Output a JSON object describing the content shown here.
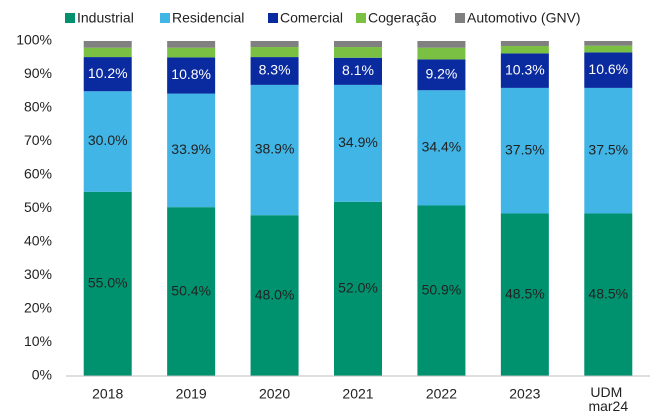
{
  "chart_data": {
    "type": "stacked_bar",
    "categories": [
      "2018",
      "2019",
      "2020",
      "2021",
      "2022",
      "2023",
      "UDM mar24"
    ],
    "series": [
      {
        "name": "Industrial",
        "color": "#00916e",
        "label_color": "#222222",
        "values": [
          55.0,
          50.4,
          48.0,
          52.0,
          50.9,
          48.5,
          48.5
        ],
        "value_labels": [
          "55.0%",
          "50.4%",
          "48.0%",
          "52.0%",
          "50.9%",
          "48.5%",
          "48.5%"
        ]
      },
      {
        "name": "Residencial",
        "color": "#41b6e6",
        "label_color": "#222222",
        "values": [
          30.0,
          33.9,
          38.9,
          34.9,
          34.4,
          37.5,
          37.5
        ],
        "value_labels": [
          "30.0%",
          "33.9%",
          "38.9%",
          "34.9%",
          "34.4%",
          "37.5%",
          "37.5%"
        ]
      },
      {
        "name": "Comercial",
        "color": "#0a2aa0",
        "label_color": "#ffffff",
        "values": [
          10.2,
          10.8,
          8.3,
          8.1,
          9.2,
          10.3,
          10.6
        ],
        "value_labels": [
          "10.2%",
          "10.8%",
          "8.3%",
          "8.1%",
          "9.2%",
          "10.3%",
          "10.6%"
        ]
      },
      {
        "name": "Cogeração",
        "color": "#7ac143",
        "values": [
          2.8,
          2.9,
          3.0,
          3.2,
          3.5,
          2.2,
          2.0
        ]
      },
      {
        "name": "Automotivo (GNV)",
        "color": "#808080",
        "values": [
          2.0,
          2.0,
          1.8,
          1.8,
          2.0,
          1.5,
          1.4
        ]
      }
    ],
    "ylim": [
      0,
      100
    ],
    "yticks": [
      {
        "value": 0,
        "label": "0%"
      },
      {
        "value": 10,
        "label": "10%"
      },
      {
        "value": 20,
        "label": "20%"
      },
      {
        "value": 30,
        "label": "30%"
      },
      {
        "value": 40,
        "label": "40%"
      },
      {
        "value": 50,
        "label": "50%"
      },
      {
        "value": 60,
        "label": "60%"
      },
      {
        "value": 70,
        "label": "70%"
      },
      {
        "value": 80,
        "label": "80%"
      },
      {
        "value": 90,
        "label": "90%"
      },
      {
        "value": 100,
        "label": "100%"
      }
    ],
    "legend": "top",
    "grid": false
  }
}
